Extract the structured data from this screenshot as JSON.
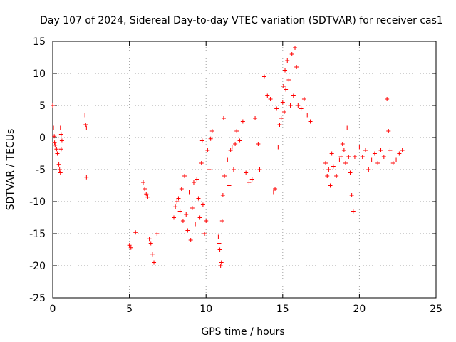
{
  "chart_data": {
    "type": "scatter",
    "title": "Day 107 of 2024, Sidereal Day-to-day VTEC variation (SDTVAR) for receiver cas1",
    "xlabel": "GPS time / hours",
    "ylabel": "SDTVAR / TECUs",
    "xlim": [
      0,
      25
    ],
    "ylim": [
      -25,
      15
    ],
    "xticks": [
      "0",
      "5",
      "10",
      "15",
      "20",
      "25"
    ],
    "yticks": [
      "15",
      "10",
      "5",
      "0",
      "-5",
      "-10",
      "-15",
      "-20",
      "-25"
    ],
    "grid": true,
    "marker": "plus",
    "color": "#ff0000",
    "series": [
      {
        "name": "SDTVAR",
        "points": [
          [
            0.0,
            5.0
          ],
          [
            0.05,
            1.5
          ],
          [
            0.1,
            0.2
          ],
          [
            0.12,
            -0.8
          ],
          [
            0.15,
            -1.2
          ],
          [
            0.2,
            -1.5
          ],
          [
            0.25,
            -1.8
          ],
          [
            0.3,
            -2.5
          ],
          [
            0.35,
            -3.5
          ],
          [
            0.4,
            -4.2
          ],
          [
            0.45,
            -5.0
          ],
          [
            0.5,
            -5.5
          ],
          [
            0.5,
            1.5
          ],
          [
            0.55,
            0.5
          ],
          [
            0.55,
            -1.8
          ],
          [
            0.6,
            -0.5
          ],
          [
            2.1,
            3.5
          ],
          [
            2.15,
            2.0
          ],
          [
            2.2,
            1.5
          ],
          [
            2.2,
            -6.2
          ],
          [
            5.0,
            -16.8
          ],
          [
            5.1,
            -17.2
          ],
          [
            5.4,
            -14.8
          ],
          [
            5.9,
            -7.0
          ],
          [
            6.0,
            -8.0
          ],
          [
            6.1,
            -8.8
          ],
          [
            6.2,
            -9.3
          ],
          [
            6.3,
            -15.8
          ],
          [
            6.4,
            -16.5
          ],
          [
            6.5,
            -18.2
          ],
          [
            6.6,
            -19.5
          ],
          [
            6.8,
            -15.0
          ],
          [
            7.9,
            -12.5
          ],
          [
            8.0,
            -10.8
          ],
          [
            8.1,
            -10.0
          ],
          [
            8.2,
            -9.5
          ],
          [
            8.3,
            -11.5
          ],
          [
            8.4,
            -8.0
          ],
          [
            8.5,
            -13.0
          ],
          [
            8.6,
            -6.0
          ],
          [
            8.7,
            -12.0
          ],
          [
            8.8,
            -14.5
          ],
          [
            8.9,
            -8.5
          ],
          [
            9.0,
            -16.0
          ],
          [
            9.1,
            -11.0
          ],
          [
            9.2,
            -7.0
          ],
          [
            9.3,
            -13.5
          ],
          [
            9.4,
            -6.5
          ],
          [
            9.5,
            -9.5
          ],
          [
            9.6,
            -12.5
          ],
          [
            9.7,
            -4.0
          ],
          [
            9.75,
            -0.5
          ],
          [
            9.8,
            -10.5
          ],
          [
            9.9,
            -15.0
          ],
          [
            10.0,
            -13.0
          ],
          [
            10.1,
            -2.0
          ],
          [
            10.2,
            -5.0
          ],
          [
            10.3,
            -0.2
          ],
          [
            10.4,
            1.0
          ],
          [
            10.8,
            -15.5
          ],
          [
            10.85,
            -16.5
          ],
          [
            10.9,
            -17.5
          ],
          [
            10.95,
            -20.0
          ],
          [
            11.0,
            -19.5
          ],
          [
            11.05,
            -13.0
          ],
          [
            11.1,
            -9.0
          ],
          [
            11.15,
            3.0
          ],
          [
            11.2,
            -6.0
          ],
          [
            11.4,
            -3.5
          ],
          [
            11.5,
            -7.5
          ],
          [
            11.6,
            -2.0
          ],
          [
            11.7,
            -1.5
          ],
          [
            11.8,
            -5.0
          ],
          [
            11.9,
            -1.0
          ],
          [
            12.0,
            1.0
          ],
          [
            12.2,
            -0.5
          ],
          [
            12.4,
            2.5
          ],
          [
            12.6,
            -5.5
          ],
          [
            12.8,
            -7.0
          ],
          [
            13.0,
            -6.5
          ],
          [
            13.2,
            3.0
          ],
          [
            13.4,
            -1.0
          ],
          [
            13.5,
            -5.0
          ],
          [
            13.8,
            9.5
          ],
          [
            14.0,
            6.5
          ],
          [
            14.2,
            6.0
          ],
          [
            14.4,
            -8.5
          ],
          [
            14.5,
            -8.0
          ],
          [
            14.6,
            4.5
          ],
          [
            14.7,
            -1.5
          ],
          [
            14.8,
            2.0
          ],
          [
            14.9,
            3.0
          ],
          [
            15.0,
            5.5
          ],
          [
            15.05,
            8.0
          ],
          [
            15.1,
            4.0
          ],
          [
            15.15,
            10.5
          ],
          [
            15.2,
            7.5
          ],
          [
            15.3,
            12.0
          ],
          [
            15.4,
            9.0
          ],
          [
            15.5,
            5.0
          ],
          [
            15.6,
            13.0
          ],
          [
            15.7,
            6.5
          ],
          [
            15.8,
            14.0
          ],
          [
            15.9,
            11.0
          ],
          [
            16.0,
            5.0
          ],
          [
            16.2,
            4.5
          ],
          [
            16.4,
            6.0
          ],
          [
            16.6,
            3.5
          ],
          [
            16.8,
            2.5
          ],
          [
            17.8,
            -4.0
          ],
          [
            17.9,
            -6.0
          ],
          [
            18.0,
            -5.0
          ],
          [
            18.1,
            -7.5
          ],
          [
            18.2,
            -2.5
          ],
          [
            18.3,
            -4.5
          ],
          [
            18.5,
            -6.0
          ],
          [
            18.7,
            -3.5
          ],
          [
            18.8,
            -3.0
          ],
          [
            18.9,
            -1.0
          ],
          [
            19.0,
            -2.0
          ],
          [
            19.1,
            -4.0
          ],
          [
            19.2,
            1.5
          ],
          [
            19.3,
            -3.0
          ],
          [
            19.4,
            -5.5
          ],
          [
            19.5,
            -9.0
          ],
          [
            19.6,
            -11.5
          ],
          [
            19.7,
            -3.0
          ],
          [
            20.0,
            -1.5
          ],
          [
            20.2,
            -3.0
          ],
          [
            20.4,
            -2.0
          ],
          [
            20.6,
            -5.0
          ],
          [
            20.8,
            -3.5
          ],
          [
            21.0,
            -2.5
          ],
          [
            21.2,
            -4.0
          ],
          [
            21.4,
            -2.0
          ],
          [
            21.6,
            -3.0
          ],
          [
            21.8,
            6.0
          ],
          [
            21.9,
            1.0
          ],
          [
            22.0,
            -2.0
          ],
          [
            22.2,
            -4.0
          ],
          [
            22.4,
            -3.5
          ],
          [
            22.6,
            -2.5
          ],
          [
            22.8,
            -2.0
          ]
        ]
      }
    ]
  }
}
